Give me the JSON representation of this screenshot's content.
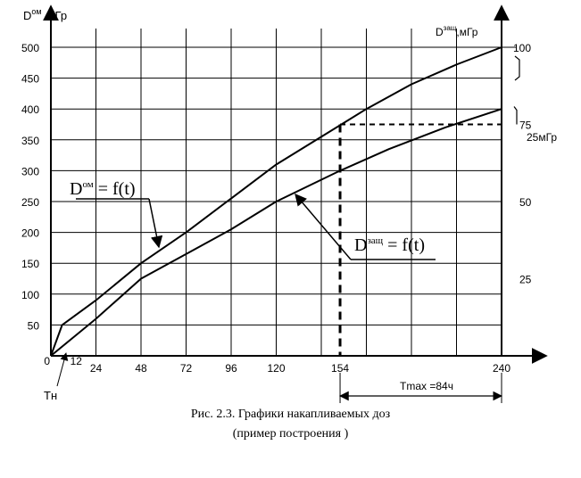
{
  "chart_data": {
    "type": "line",
    "title": "",
    "left_axis_title": {
      "symbol": "D",
      "superscript": "ом",
      "unit": "мГр"
    },
    "right_axis_title": {
      "symbol": "D",
      "superscript": "защ",
      "unit": ",мГр"
    },
    "left_y_ticks": [
      "500",
      "450",
      "400",
      "350",
      "300",
      "250",
      "200",
      "150",
      "100",
      "50"
    ],
    "left_y_values": [
      500,
      450,
      400,
      350,
      300,
      250,
      200,
      150,
      100,
      50
    ],
    "right_y_ticks": [
      "100",
      "75",
      "50",
      "25"
    ],
    "right_y_values": [
      100,
      75,
      50,
      25
    ],
    "x_ticks": [
      "0",
      "12",
      "24",
      "48",
      "72",
      "96",
      "120",
      "154",
      "240"
    ],
    "x_values": [
      0,
      12,
      24,
      48,
      72,
      96,
      120,
      154,
      240
    ],
    "xlim": [
      0,
      240
    ],
    "ylim": [
      0,
      500
    ],
    "y2lim": [
      0,
      100
    ],
    "grid": true,
    "series": [
      {
        "name": "Dом = f(t)",
        "axis": "left",
        "x": [
          0,
          6,
          24,
          48,
          72,
          96,
          120,
          144,
          168,
          192,
          216,
          240
        ],
        "y": [
          0,
          50,
          90,
          150,
          200,
          255,
          310,
          355,
          400,
          440,
          472,
          500
        ]
      },
      {
        "name": "Dзащ = f(t)",
        "axis": "right",
        "x": [
          0,
          12,
          24,
          48,
          72,
          96,
          120,
          154,
          180,
          210,
          240
        ],
        "y": [
          0,
          6,
          12,
          25,
          33,
          41,
          50,
          60,
          67,
          74,
          80
        ]
      }
    ],
    "annotations": {
      "series1_label": {
        "symbol": "D",
        "superscript": "ом",
        "rest": " = f(t)"
      },
      "series2_label": {
        "symbol": "D",
        "superscript": "защ",
        "rest": " = f(t)"
      },
      "bracket_label": "25мГр",
      "tn_label": "Тн",
      "tmax_label": "Tmax =84ч",
      "marker_x": 154,
      "marker_y2": 75
    }
  },
  "caption": {
    "line1": "Рис. 2.3. Графики накапливаемых доз",
    "line2": "(пример построения )"
  }
}
